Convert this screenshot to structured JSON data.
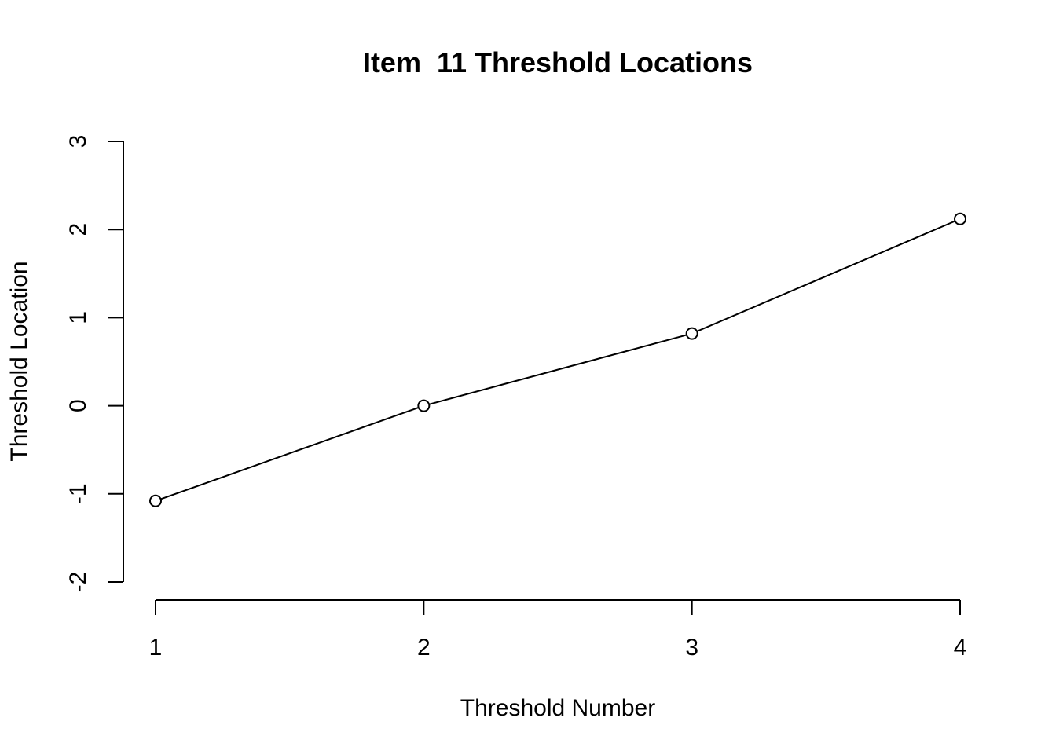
{
  "chart_data": {
    "type": "line",
    "title": "Item  11 Threshold Locations",
    "xlabel": "Threshold Number",
    "ylabel": "Threshold Location",
    "x": [
      1,
      2,
      3,
      4
    ],
    "y": [
      -1.08,
      0.0,
      0.82,
      2.12
    ],
    "xlim": [
      1,
      4
    ],
    "ylim": [
      -2,
      3
    ],
    "xticks": [
      "1",
      "2",
      "3",
      "4"
    ],
    "yticks": [
      "-2",
      "-1",
      "0",
      "1",
      "2",
      "3"
    ],
    "marker": "open-circle",
    "line_color": "#000000",
    "grid": false,
    "legend": "none"
  }
}
